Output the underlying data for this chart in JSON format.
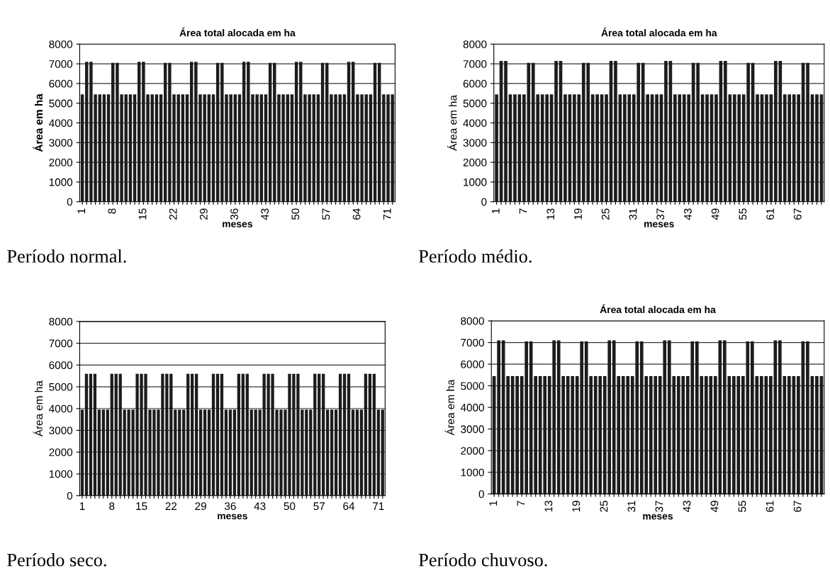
{
  "chart_data": [
    {
      "type": "bar",
      "title": "Área total alocada em ha",
      "xlabel": "meses",
      "ylabel": "Área em ha",
      "color": "#1c1c1c",
      "ylim": [
        0,
        8000
      ],
      "yticks": [
        0,
        1000,
        2000,
        3000,
        4000,
        5000,
        6000,
        7000,
        8000
      ],
      "grid": "y",
      "annotations": [
        "Período normal."
      ],
      "categories": [
        "1",
        null,
        null,
        null,
        null,
        null,
        null,
        "8",
        null,
        null,
        null,
        null,
        null,
        null,
        "15",
        null,
        null,
        null,
        null,
        null,
        null,
        "22",
        null,
        null,
        null,
        null,
        null,
        null,
        "29",
        null,
        null,
        null,
        null,
        null,
        null,
        "36",
        null,
        null,
        null,
        null,
        null,
        null,
        "43",
        null,
        null,
        null,
        null,
        null,
        null,
        "50",
        null,
        null,
        null,
        null,
        null,
        null,
        "57",
        null,
        null,
        null,
        null,
        null,
        null,
        "64",
        null,
        null,
        null,
        null,
        null,
        null,
        "71",
        null
      ],
      "values": [
        5450,
        7100,
        7100,
        5450,
        5450,
        5450,
        5450,
        7050,
        7050,
        5450,
        5450,
        5450,
        5450,
        7100,
        7100,
        5450,
        5450,
        5450,
        5450,
        7050,
        7050,
        5450,
        5450,
        5450,
        5450,
        7100,
        7100,
        5450,
        5450,
        5450,
        5450,
        7050,
        7050,
        5450,
        5450,
        5450,
        5450,
        7100,
        7100,
        5450,
        5450,
        5450,
        5450,
        7050,
        7050,
        5450,
        5450,
        5450,
        5450,
        7100,
        7100,
        5450,
        5450,
        5450,
        5450,
        7050,
        7050,
        5450,
        5450,
        5450,
        5450,
        7100,
        7100,
        5450,
        5450,
        5450,
        5450,
        7050,
        7050,
        5450,
        5450,
        5450
      ]
    },
    {
      "type": "bar",
      "title": "Área total alocada em ha",
      "xlabel": "meses",
      "ylabel": "Área em ha",
      "color": "#1c1c1c",
      "ylim": [
        0,
        8000
      ],
      "yticks": [
        0,
        1000,
        2000,
        3000,
        4000,
        5000,
        6000,
        7000,
        8000
      ],
      "grid": "y",
      "annotations": [
        "Período médio."
      ],
      "categories": [
        "1",
        null,
        null,
        null,
        null,
        null,
        "7",
        null,
        null,
        null,
        null,
        null,
        "13",
        null,
        null,
        null,
        null,
        null,
        "19",
        null,
        null,
        null,
        null,
        null,
        "25",
        null,
        null,
        null,
        null,
        null,
        "31",
        null,
        null,
        null,
        null,
        null,
        "37",
        null,
        null,
        null,
        null,
        null,
        "43",
        null,
        null,
        null,
        null,
        null,
        "49",
        null,
        null,
        null,
        null,
        null,
        "55",
        null,
        null,
        null,
        null,
        null,
        "61",
        null,
        null,
        null,
        null,
        null,
        "67",
        null,
        null,
        null,
        null,
        null
      ],
      "values": [
        5450,
        7150,
        7150,
        5450,
        5450,
        5450,
        5450,
        7050,
        7050,
        5450,
        5450,
        5450,
        5450,
        7150,
        7150,
        5450,
        5450,
        5450,
        5450,
        7050,
        7050,
        5450,
        5450,
        5450,
        5450,
        7150,
        7150,
        5450,
        5450,
        5450,
        5450,
        7050,
        7050,
        5450,
        5450,
        5450,
        5450,
        7150,
        7150,
        5450,
        5450,
        5450,
        5450,
        7050,
        7050,
        5450,
        5450,
        5450,
        5450,
        7150,
        7150,
        5450,
        5450,
        5450,
        5450,
        7050,
        7050,
        5450,
        5450,
        5450,
        5450,
        7150,
        7150,
        5450,
        5450,
        5450,
        5450,
        7050,
        7050,
        5450,
        5450,
        5450
      ]
    },
    {
      "type": "bar",
      "xlabel": "meses",
      "ylabel": "Área em ha",
      "color": "#1c1c1c",
      "ylim": [
        0,
        8000
      ],
      "yticks": [
        0,
        1000,
        2000,
        3000,
        4000,
        5000,
        6000,
        7000,
        8000
      ],
      "grid": "y",
      "annotations": [
        "Período seco."
      ],
      "categories": [
        "1",
        null,
        null,
        null,
        null,
        null,
        null,
        "8",
        null,
        null,
        null,
        null,
        null,
        null,
        "15",
        null,
        null,
        null,
        null,
        null,
        null,
        "22",
        null,
        null,
        null,
        null,
        null,
        null,
        "29",
        null,
        null,
        null,
        null,
        null,
        null,
        "36",
        null,
        null,
        null,
        null,
        null,
        null,
        "43",
        null,
        null,
        null,
        null,
        null,
        null,
        "50",
        null,
        null,
        null,
        null,
        null,
        null,
        "57",
        null,
        null,
        null,
        null,
        null,
        null,
        "64",
        null,
        null,
        null,
        null,
        null,
        null,
        "71",
        null
      ],
      "values": [
        3950,
        5600,
        5600,
        5600,
        3950,
        3950,
        3950,
        5600,
        5600,
        5600,
        3950,
        3950,
        3950,
        5600,
        5600,
        5600,
        3950,
        3950,
        3950,
        5600,
        5600,
        5600,
        3950,
        3950,
        3950,
        5600,
        5600,
        5600,
        3950,
        3950,
        3950,
        5600,
        5600,
        5600,
        3950,
        3950,
        3950,
        5600,
        5600,
        5600,
        3950,
        3950,
        3950,
        5600,
        5600,
        5600,
        3950,
        3950,
        3950,
        5600,
        5600,
        5600,
        3950,
        3950,
        3950,
        5600,
        5600,
        5600,
        3950,
        3950,
        3950,
        5600,
        5600,
        5600,
        3950,
        3950,
        3950,
        5600,
        5600,
        5600,
        3950,
        3950
      ]
    },
    {
      "type": "bar",
      "title": "Área total alocada em ha",
      "xlabel": "meses",
      "ylabel": "Área em ha",
      "color": "#1c1c1c",
      "ylim": [
        0,
        8000
      ],
      "yticks": [
        0,
        1000,
        2000,
        3000,
        4000,
        5000,
        6000,
        7000,
        8000
      ],
      "grid": "y",
      "annotations": [
        "Período chuvoso."
      ],
      "categories": [
        "1",
        null,
        null,
        null,
        null,
        null,
        "7",
        null,
        null,
        null,
        null,
        null,
        "13",
        null,
        null,
        null,
        null,
        null,
        "19",
        null,
        null,
        null,
        null,
        null,
        "25",
        null,
        null,
        null,
        null,
        null,
        "31",
        null,
        null,
        null,
        null,
        null,
        "37",
        null,
        null,
        null,
        null,
        null,
        "43",
        null,
        null,
        null,
        null,
        null,
        "49",
        null,
        null,
        null,
        null,
        null,
        "55",
        null,
        null,
        null,
        null,
        null,
        "61",
        null,
        null,
        null,
        null,
        null,
        "67",
        null,
        null,
        null,
        null,
        null
      ],
      "values": [
        5450,
        7100,
        7100,
        5450,
        5450,
        5450,
        5450,
        7050,
        7050,
        5450,
        5450,
        5450,
        5450,
        7100,
        7100,
        5450,
        5450,
        5450,
        5450,
        7050,
        7050,
        5450,
        5450,
        5450,
        5450,
        7100,
        7100,
        5450,
        5450,
        5450,
        5450,
        7050,
        7050,
        5450,
        5450,
        5450,
        5450,
        7100,
        7100,
        5450,
        5450,
        5450,
        5450,
        7050,
        7050,
        5450,
        5450,
        5450,
        5450,
        7100,
        7100,
        5450,
        5450,
        5450,
        5450,
        7050,
        7050,
        5450,
        5450,
        5450,
        5450,
        7100,
        7100,
        5450,
        5450,
        5450,
        5450,
        7050,
        7050,
        5450,
        5450,
        5450
      ]
    }
  ]
}
